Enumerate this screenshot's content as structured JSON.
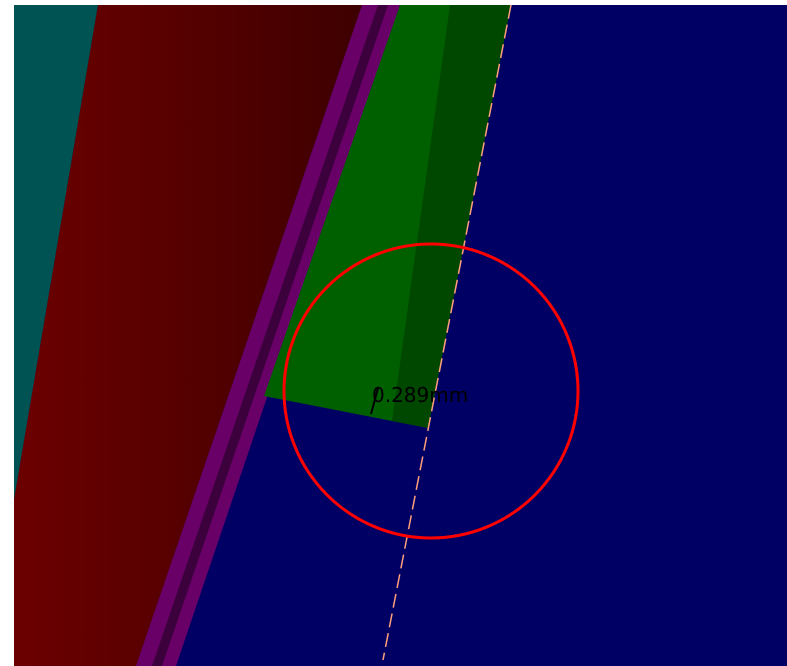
{
  "viewport": {
    "measurement_label": "0.289mm",
    "colors": {
      "left_component": "#005353",
      "red_body_light": "#6c0000",
      "red_body_dark": "#3e0000",
      "outline_purple": "#680068",
      "outline_purple_dark": "#3c003c",
      "green_pad": "#006000",
      "green_pad_dark": "#004800",
      "board_blue": "#000064",
      "highlight_circle": "#ff0000",
      "dashed_line": "#ffa07a",
      "border": "#ffffff"
    }
  }
}
